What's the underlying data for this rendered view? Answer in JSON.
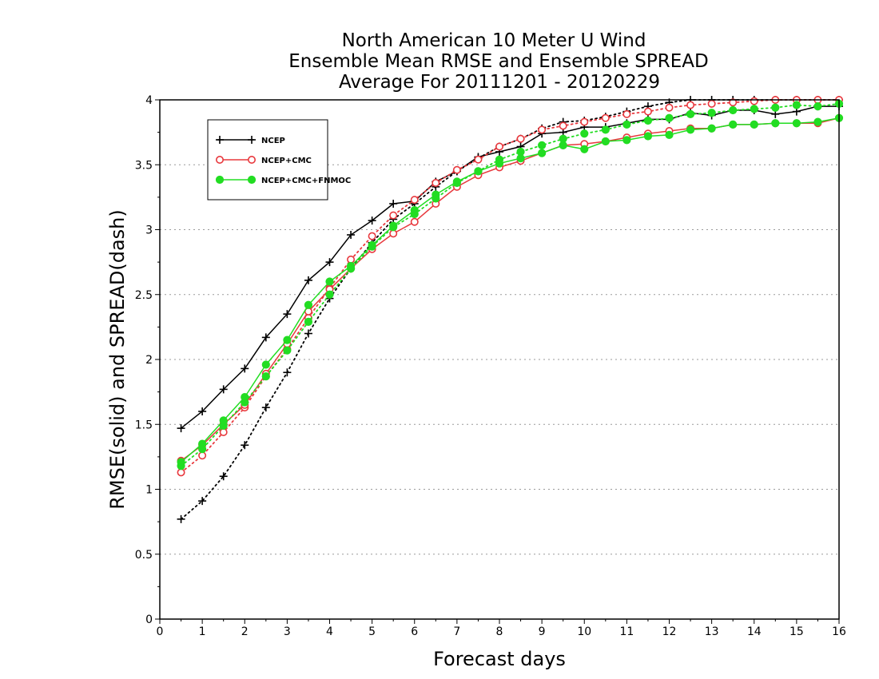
{
  "chart_data": {
    "type": "line",
    "title": [
      "North American 10 Meter U Wind",
      "Ensemble Mean RMSE and Ensemble SPREAD",
      "Average For 20111201 - 20120229"
    ],
    "xlabel": "Forecast days",
    "ylabel": "RMSE(solid) and SPREAD(dash)",
    "xlim": [
      0,
      16
    ],
    "ylim": [
      0,
      4
    ],
    "xticks": [
      "0",
      "1",
      "2",
      "3",
      "4",
      "5",
      "6",
      "7",
      "8",
      "9",
      "10",
      "11",
      "12",
      "13",
      "14",
      "15",
      "16"
    ],
    "yticks": [
      "0",
      "0.5",
      "1",
      "1.5",
      "2",
      "2.5",
      "3",
      "3.5",
      "4"
    ],
    "grid": "horizontal dotted",
    "legend_position": "top-left",
    "x": [
      0.5,
      1,
      1.5,
      2,
      2.5,
      3,
      3.5,
      4,
      4.5,
      5,
      5.5,
      6,
      6.5,
      7,
      7.5,
      8,
      8.5,
      9,
      9.5,
      10,
      10.5,
      11,
      11.5,
      12,
      12.5,
      13,
      13.5,
      14,
      14.5,
      15,
      15.5,
      16
    ],
    "series": [
      {
        "name": "NCEP",
        "color": "#000000",
        "marker": "plus",
        "rmse": [
          1.47,
          1.6,
          1.77,
          1.93,
          2.17,
          2.35,
          2.61,
          2.75,
          2.96,
          3.07,
          3.2,
          3.22,
          3.37,
          3.45,
          3.56,
          3.6,
          3.64,
          3.74,
          3.75,
          3.79,
          3.79,
          3.82,
          3.85,
          3.85,
          3.9,
          3.88,
          3.92,
          3.92,
          3.89,
          3.91,
          3.95,
          3.95
        ],
        "spread": [
          0.77,
          0.91,
          1.1,
          1.34,
          1.63,
          1.9,
          2.2,
          2.47,
          2.7,
          2.9,
          3.08,
          3.2,
          3.33,
          3.45,
          3.55,
          3.64,
          3.7,
          3.78,
          3.83,
          3.84,
          3.87,
          3.91,
          3.95,
          3.98,
          4.0,
          4.0,
          4.0,
          4.0,
          4.0,
          4.0,
          4.0,
          4.0
        ]
      },
      {
        "name": "NCEP+CMC",
        "color": "#e8383d",
        "marker": "open-circle",
        "rmse": [
          1.22,
          1.34,
          1.5,
          1.65,
          1.89,
          2.12,
          2.37,
          2.54,
          2.7,
          2.85,
          2.97,
          3.06,
          3.2,
          3.33,
          3.42,
          3.48,
          3.53,
          3.59,
          3.65,
          3.66,
          3.68,
          3.71,
          3.74,
          3.76,
          3.78,
          3.78,
          3.81,
          3.81,
          3.82,
          3.82,
          3.82,
          3.86
        ],
        "spread": [
          1.13,
          1.26,
          1.44,
          1.63,
          1.87,
          2.08,
          2.32,
          2.55,
          2.77,
          2.95,
          3.11,
          3.23,
          3.36,
          3.46,
          3.54,
          3.64,
          3.7,
          3.77,
          3.8,
          3.83,
          3.86,
          3.89,
          3.91,
          3.94,
          3.96,
          3.97,
          3.98,
          3.99,
          4.0,
          4.0,
          4.0,
          4.0
        ]
      },
      {
        "name": "NCEP+CMC+FNMOC",
        "color": "#22dd22",
        "marker": "filled-circle",
        "rmse": [
          1.21,
          1.35,
          1.53,
          1.71,
          1.96,
          2.15,
          2.42,
          2.6,
          2.72,
          2.88,
          3.03,
          3.15,
          3.27,
          3.37,
          3.45,
          3.51,
          3.55,
          3.59,
          3.65,
          3.62,
          3.68,
          3.69,
          3.72,
          3.73,
          3.77,
          3.78,
          3.81,
          3.81,
          3.82,
          3.82,
          3.83,
          3.86
        ],
        "spread": [
          1.18,
          1.31,
          1.49,
          1.67,
          1.87,
          2.07,
          2.29,
          2.5,
          2.7,
          2.87,
          3.02,
          3.12,
          3.24,
          3.36,
          3.45,
          3.54,
          3.6,
          3.65,
          3.7,
          3.74,
          3.77,
          3.81,
          3.84,
          3.86,
          3.89,
          3.9,
          3.92,
          3.93,
          3.94,
          3.96,
          3.95,
          3.97
        ]
      }
    ]
  }
}
